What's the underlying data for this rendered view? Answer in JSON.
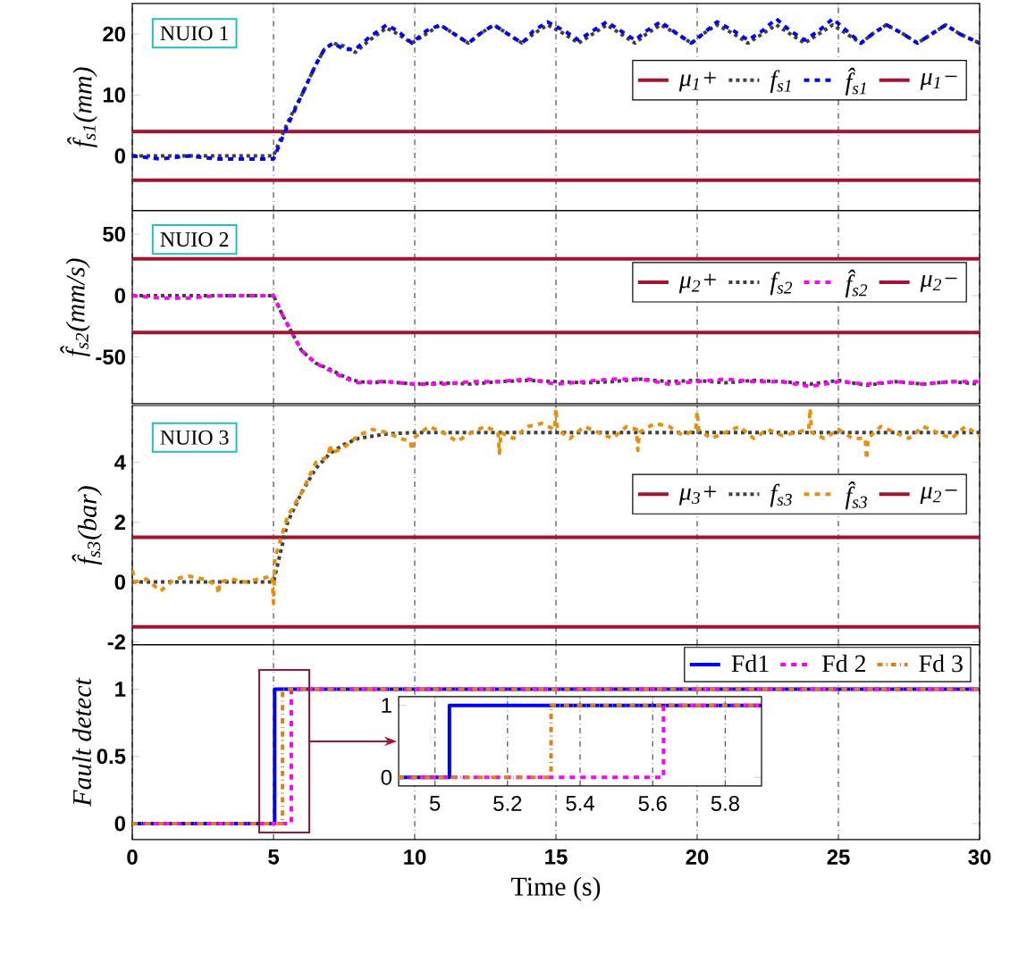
{
  "chart_data": [
    {
      "type": "line",
      "ylabel": "f̂$_{s1}$(mm)",
      "xlim": [
        0,
        30
      ],
      "ylim": [
        -9,
        25
      ],
      "xticks": [
        0,
        5,
        10,
        15,
        20,
        25,
        30
      ],
      "yticks": [
        0,
        10,
        20
      ],
      "tick_labels": "y",
      "grid": "x",
      "legend": "right",
      "annotations": [
        "NUIO 1"
      ],
      "ref_lines": [
        {
          "axis": "y",
          "value": 4,
          "label": "μ$_{1}$+",
          "color": "#a2142f"
        },
        {
          "axis": "y",
          "value": -4,
          "label": "μ$_{1}$−",
          "color": "#a2142f"
        }
      ],
      "x": [
        0,
        1,
        2,
        3,
        4,
        5,
        5.5,
        6,
        6.5,
        6.8,
        7.1,
        7.5,
        7.9,
        8.4,
        9.0,
        9.4,
        9.9,
        10.4,
        10.9,
        11.4,
        11.9,
        12.3,
        12.8,
        13.3,
        13.8,
        14.2,
        14.7,
        15.3,
        15.8,
        16.3,
        16.8,
        17.3,
        17.8,
        18.2,
        18.7,
        19.3,
        19.8,
        20.2,
        20.7,
        21.3,
        21.8,
        22.3,
        22.8,
        23.3,
        23.8,
        24.3,
        24.8,
        25.3,
        25.8,
        26.2,
        26.7,
        27.3,
        27.8,
        28.3,
        28.8,
        29.3,
        30
      ],
      "series": [
        {
          "name": "f$_{s1}$",
          "color": "#404040",
          "line_style": "dotted",
          "values": [
            0,
            0,
            0,
            0,
            0,
            0,
            5.5,
            10,
            15,
            17.5,
            18.5,
            18,
            17,
            19,
            21,
            20,
            18.5,
            20,
            21.5,
            20,
            18.5,
            20,
            21.5,
            20,
            18.5,
            20,
            21.5,
            20,
            18.5,
            20,
            21.5,
            20,
            18.5,
            20,
            21.5,
            20,
            18.5,
            20,
            21.5,
            20,
            18.5,
            20,
            21.5,
            20,
            18.5,
            20,
            21.5,
            20,
            18.5,
            20,
            21.5,
            20,
            18.5,
            20,
            21.5,
            20,
            18.5
          ]
        },
        {
          "name": "f̂$_{s1}$",
          "color": "#0000ff",
          "line_style": "dashed",
          "values": [
            0,
            -0.5,
            0,
            -0.5,
            -0.5,
            -0.5,
            5,
            10,
            15,
            17.5,
            18.5,
            17.5,
            17.5,
            19.5,
            21.5,
            20.5,
            18.5,
            20.5,
            21.5,
            20,
            18.5,
            20,
            21.5,
            20,
            18.5,
            20.5,
            22,
            20.5,
            19,
            20.5,
            22,
            20.5,
            19,
            20.5,
            22,
            20,
            18.5,
            20,
            22,
            20.5,
            19,
            20.5,
            22.5,
            20.5,
            19,
            20.5,
            22.5,
            20.5,
            18.5,
            20,
            21.5,
            20,
            18.5,
            20,
            21.5,
            20,
            18.5
          ]
        }
      ]
    },
    {
      "type": "line",
      "ylabel": "f̂$_{s2}$(mm/s)",
      "xlim": [
        0,
        30
      ],
      "ylim": [
        -88,
        69
      ],
      "xticks": [
        0,
        5,
        10,
        15,
        20,
        25,
        30
      ],
      "yticks": [
        -50,
        0,
        50
      ],
      "tick_labels": "y",
      "grid": "x",
      "legend": "right",
      "annotations": [
        "NUIO 2"
      ],
      "ref_lines": [
        {
          "axis": "y",
          "value": 30,
          "label": "μ$_{2}$+",
          "color": "#a2142f"
        },
        {
          "axis": "y",
          "value": -30,
          "label": "μ$_{2}$−",
          "color": "#a2142f"
        }
      ],
      "x": [
        0,
        1,
        2,
        3,
        4,
        5,
        5.3,
        5.6,
        6,
        6.5,
        7,
        7.5,
        8,
        8.5,
        9,
        10,
        11,
        12,
        13,
        14,
        15,
        16,
        17,
        18,
        19,
        20,
        21,
        22,
        23,
        24,
        25,
        26,
        27,
        28,
        29,
        30
      ],
      "series": [
        {
          "name": "f$_{s2}$",
          "color": "#404040",
          "line_style": "dotted",
          "values": [
            0,
            0,
            0,
            0,
            0,
            0,
            -15,
            -28,
            -45,
            -55,
            -60,
            -66,
            -70,
            -71,
            -70,
            -72,
            -71,
            -72,
            -70,
            -69,
            -70,
            -71,
            -70,
            -68,
            -70,
            -69,
            -71,
            -69,
            -70,
            -72,
            -69,
            -73,
            -70,
            -72,
            -70,
            -72
          ]
        },
        {
          "name": "f̂$_{s2}$",
          "color": "#ff00ff",
          "line_style": "dashed",
          "values": [
            0,
            -2,
            -2,
            0,
            0,
            0,
            -15,
            -28,
            -45,
            -55,
            -61,
            -67,
            -71,
            -70,
            -70,
            -72,
            -72,
            -70,
            -70,
            -68,
            -72,
            -70,
            -68,
            -68,
            -72,
            -70,
            -68,
            -70,
            -70,
            -74,
            -70,
            -72,
            -70,
            -72,
            -70,
            -70
          ]
        }
      ]
    },
    {
      "type": "line",
      "ylabel": "f̂$_{s3}$(bar)",
      "xlim": [
        0,
        30
      ],
      "ylim": [
        -2.1,
        5.9
      ],
      "xticks": [
        0,
        5,
        10,
        15,
        20,
        25,
        30
      ],
      "yticks": [
        -2,
        0,
        2,
        4
      ],
      "tick_labels": "y",
      "grid": "x",
      "legend": "right",
      "annotations": [
        "NUIO 3"
      ],
      "ref_lines": [
        {
          "axis": "y",
          "value": 1.5,
          "label": "μ$_{3}$+",
          "color": "#a2142f"
        },
        {
          "axis": "y",
          "value": -1.5,
          "label": "μ$_{2}$−",
          "color": "#a2142f"
        }
      ],
      "series": [
        {
          "name": "f$_{s3}$",
          "color": "#404040",
          "line_style": "dotted",
          "x": [
            0,
            5,
            5.5,
            6,
            6.5,
            7,
            7.5,
            8,
            9,
            10,
            30
          ],
          "values": [
            0,
            0,
            2,
            3,
            3.8,
            4.3,
            4.6,
            4.8,
            4.95,
            5,
            5
          ]
        },
        {
          "name": "f̂$_{s3}$",
          "color": "#e8900c",
          "line_style": "dashed",
          "x": [
            0,
            0.1,
            0.5,
            1,
            1.5,
            2,
            2.5,
            3,
            3.05,
            3.1,
            3.5,
            4,
            4.5,
            4.95,
            5,
            5.05,
            5.5,
            6,
            6.5,
            6.95,
            7,
            7.05,
            7.5,
            8,
            8.5,
            9,
            9.5,
            9.85,
            9.9,
            9.95,
            10.5,
            11,
            11.5,
            12,
            12.5,
            12.95,
            13,
            13.05,
            13.5,
            14,
            14.5,
            14.95,
            15,
            15.05,
            15.5,
            16,
            16.5,
            17,
            17.5,
            17.85,
            17.9,
            17.95,
            18.5,
            19,
            19.5,
            19.95,
            20,
            20.05,
            20.5,
            21,
            21.5,
            22,
            22.5,
            23,
            23.5,
            23.95,
            24,
            24.05,
            24.5,
            25,
            25.5,
            25.95,
            26,
            26.05,
            26.5,
            27,
            27.5,
            28,
            28.5,
            29,
            29.5,
            30
          ],
          "values": [
            0.4,
            0,
            0.1,
            -0.3,
            0.1,
            0.2,
            0.1,
            -0.1,
            -0.4,
            0,
            0.1,
            0,
            0.1,
            0.2,
            -0.7,
            0.8,
            2.2,
            3,
            4,
            4.2,
            4.6,
            4.3,
            4.5,
            4.9,
            5.1,
            5,
            4.8,
            4.7,
            4.4,
            4.8,
            5.2,
            5,
            4.7,
            5,
            5.2,
            5,
            4.3,
            5,
            4.8,
            5.2,
            5.3,
            5.1,
            5.8,
            5.1,
            4.8,
            5.2,
            5,
            4.8,
            5.2,
            5.1,
            4.4,
            5,
            5.3,
            5.2,
            4.9,
            5.1,
            5.7,
            5.1,
            4.8,
            5,
            5.2,
            4.8,
            5.1,
            4.9,
            5,
            5.1,
            5.8,
            5,
            4.8,
            5.1,
            4.8,
            4.8,
            4.1,
            4.8,
            5.2,
            5,
            4.8,
            5.2,
            5,
            4.8,
            5.2,
            4.9
          ]
        }
      ]
    },
    {
      "type": "line",
      "xlabel": "Time (s)",
      "ylabel": "Fault detect",
      "xlim": [
        0,
        30
      ],
      "ylim": [
        -0.12,
        1.33
      ],
      "xticks": [
        0,
        5,
        10,
        15,
        20,
        25,
        30
      ],
      "yticks": [
        0,
        0.5,
        1
      ],
      "grid": "x",
      "legend": "top right",
      "series": [
        {
          "name": "Fd1",
          "color": "#0000ff",
          "line_style": "solid",
          "x": [
            0,
            5.04,
            5.04,
            30
          ],
          "values": [
            0,
            0,
            1,
            1
          ]
        },
        {
          "name": "Fd 2",
          "color": "#ff00ff",
          "line_style": "dashed",
          "x": [
            0,
            5.63,
            5.63,
            30
          ],
          "values": [
            0,
            0,
            1,
            1
          ]
        },
        {
          "name": "Fd 3",
          "color": "#d9801f",
          "line_style": "dashdot",
          "x": [
            0,
            5.32,
            5.32,
            30
          ],
          "values": [
            0,
            0,
            1,
            1
          ]
        }
      ]
    },
    {
      "type": "line",
      "xlim": [
        4.9,
        5.9
      ],
      "ylim": [
        -0.12,
        1.12
      ],
      "xticks": [
        5,
        5.2,
        5.4,
        5.6,
        5.8
      ],
      "yticks": [
        0,
        1
      ],
      "grid": "x",
      "series": [
        {
          "color": "#0000ff",
          "line_style": "solid",
          "x": [
            4.9,
            5.04,
            5.04,
            5.9
          ],
          "values": [
            0,
            0,
            1,
            1
          ]
        },
        {
          "color": "#ff00ff",
          "line_style": "dashed",
          "x": [
            4.9,
            5.63,
            5.63,
            5.9
          ],
          "values": [
            0,
            0,
            1,
            1
          ]
        },
        {
          "color": "#d9801f",
          "line_style": "dashdot",
          "x": [
            4.9,
            5.32,
            5.32,
            5.9
          ],
          "values": [
            0,
            0,
            1,
            1
          ]
        }
      ]
    }
  ]
}
